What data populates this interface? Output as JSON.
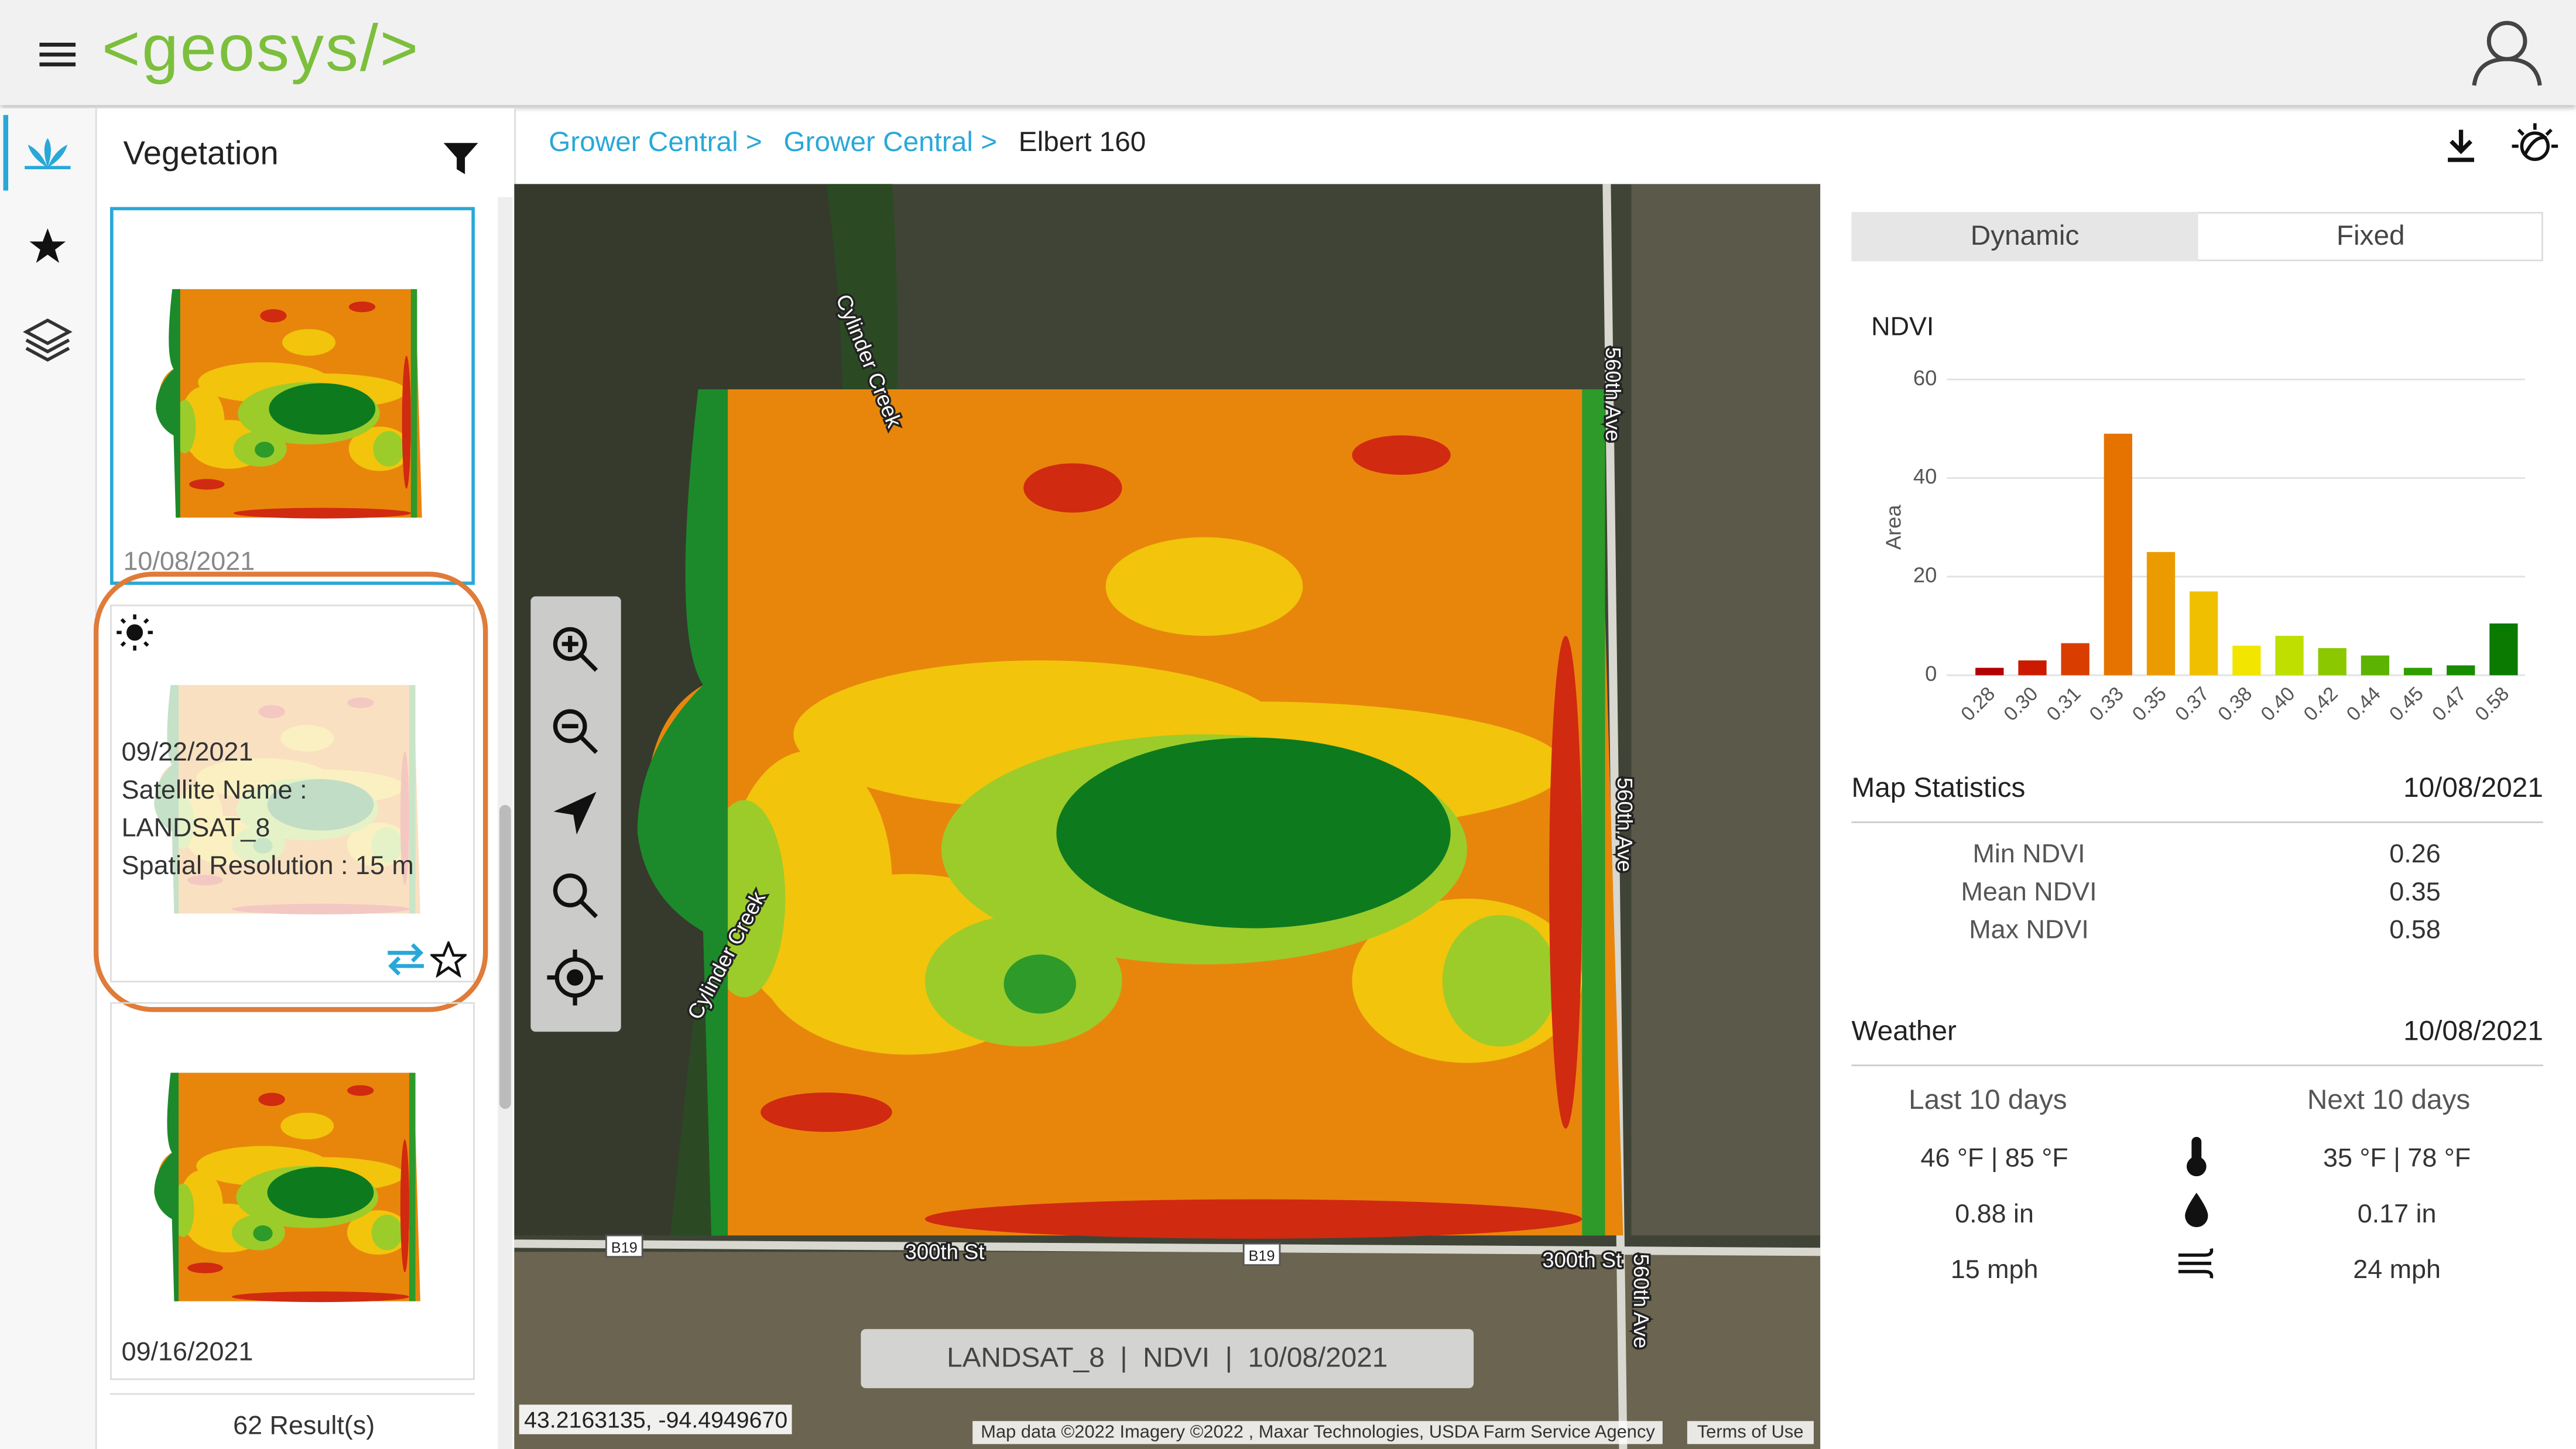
{
  "header": {
    "logo": "<geosys/>"
  },
  "sidebar": {
    "title": "Vegetation",
    "cards": [
      {
        "date": "10/08/2021"
      },
      {
        "date": "09/22/2021",
        "satellite_label": "Satellite Name :",
        "satellite": "LANDSAT_8",
        "resolution": "Spatial Resolution : 15 m"
      },
      {
        "date": "09/16/2021"
      }
    ],
    "results": "62 Result(s)"
  },
  "breadcrumb": [
    "Grower Central >",
    "Grower Central >",
    "Elbert 160"
  ],
  "map": {
    "labels": [
      "Cylinder Creek",
      "Cylinder Creek",
      "560th Ave",
      "560th Ave",
      "560th Ave",
      "300th St",
      "300th St",
      "B19",
      "B19"
    ],
    "info": "LANDSAT_8  |  NDVI  |  10/08/2021",
    "coordinates": "43.2163135, -94.4949670",
    "attribution": "Map data ©2022 Imagery ©2022 , Maxar Technologies, USDA Farm Service Agency",
    "terms": "Terms of Use"
  },
  "toggle": [
    "Dynamic",
    "Fixed"
  ],
  "chart_data": {
    "type": "bar",
    "title": "NDVI",
    "y_label": "Area",
    "categories": [
      "0.28",
      "0.30",
      "0.31",
      "0.33",
      "0.35",
      "0.37",
      "0.38",
      "0.40",
      "0.42",
      "0.44",
      "0.45",
      "0.47",
      "0.58"
    ],
    "series": [
      {
        "name": "Area",
        "values": [
          1.5,
          3,
          6.5,
          49,
          25,
          17,
          6,
          8,
          5.5,
          4,
          1.5,
          2,
          10.5
        ],
        "colors": [
          "#b30000",
          "#cc1a00",
          "#d93d00",
          "#e67300",
          "#eb9b00",
          "#f0c000",
          "#f2e600",
          "#bfdf00",
          "#8cc800",
          "#5cb300",
          "#2e9e00",
          "#178c00",
          "#0a7a00"
        ]
      }
    ],
    "ylim": [
      0,
      60
    ],
    "yticks": [
      0,
      20,
      40,
      60
    ],
    "grid": true
  },
  "map_statistics": {
    "title": "Map Statistics",
    "date": "10/08/2021",
    "rows": [
      [
        "Min NDVI",
        "0.26"
      ],
      [
        "Mean NDVI",
        "0.35"
      ],
      [
        "Max NDVI",
        "0.58"
      ]
    ]
  },
  "weather": {
    "title": "Weather",
    "date": "10/08/2021",
    "headers": [
      "Last 10 days",
      "Next 10 days"
    ],
    "rows": [
      [
        "46 °F | 85 °F",
        "35 °F | 78 °F"
      ],
      [
        "0.88 in",
        "0.17 in"
      ],
      [
        "15 mph",
        "24 mph"
      ]
    ]
  }
}
